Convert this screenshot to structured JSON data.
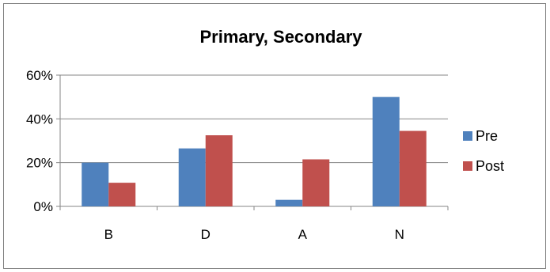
{
  "chart_data": {
    "type": "bar",
    "title": "Primary, Secondary",
    "xlabel": "",
    "ylabel": "",
    "categories": [
      "B",
      "D",
      "A",
      "N"
    ],
    "series": [
      {
        "name": "Pre",
        "values": [
          0.2,
          0.265,
          0.03,
          0.5
        ],
        "color": "#4f81bd"
      },
      {
        "name": "Post",
        "values": [
          0.108,
          0.325,
          0.215,
          0.345
        ],
        "color": "#c0504d"
      }
    ],
    "ylim": [
      0,
      0.6
    ],
    "yticks": [
      0,
      0.2,
      0.4,
      0.6
    ],
    "ytick_labels": [
      "0%",
      "20%",
      "40%",
      "60%"
    ],
    "grid": true,
    "legend_position": "right"
  }
}
